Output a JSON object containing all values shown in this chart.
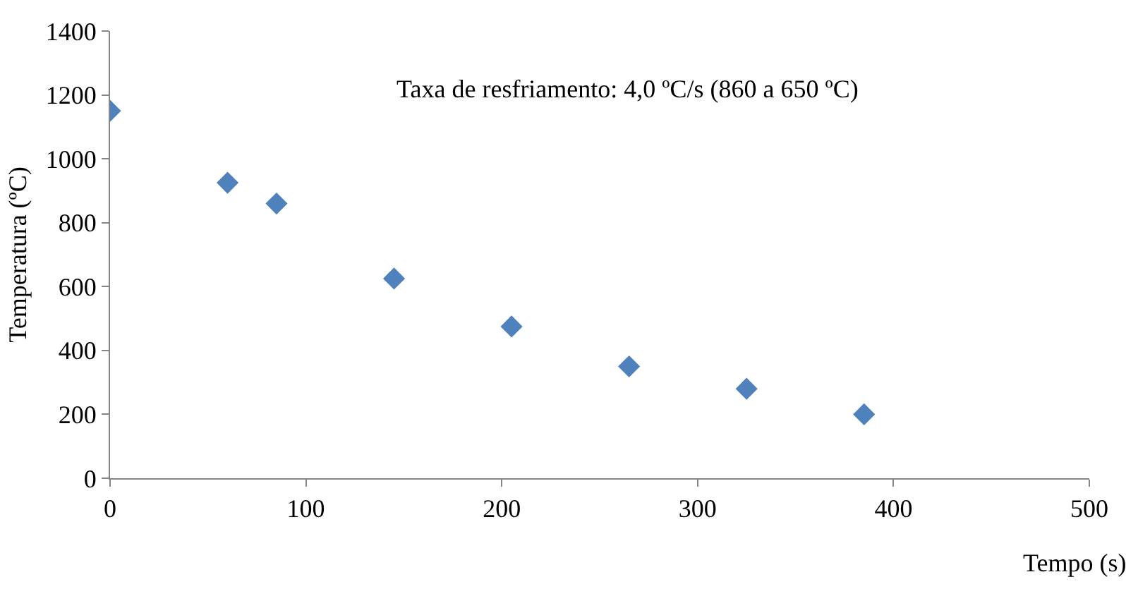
{
  "chart_data": {
    "type": "scatter",
    "xlabel": "Tempo (s)",
    "ylabel": "Temperatura (ºC)",
    "annotations": [
      "Taxa de resfriamento: 4,0 ºC/s (860 a 650 ºC)"
    ],
    "x": [
      0,
      60,
      85,
      145,
      205,
      265,
      325,
      385
    ],
    "series": [
      {
        "color": "#4f81bd",
        "values": [
          1150,
          925,
          860,
          625,
          475,
          350,
          280,
          200
        ]
      }
    ],
    "xlim": [
      0,
      500
    ],
    "xticks": [
      0,
      100,
      200,
      300,
      400,
      500
    ],
    "ylim": [
      0,
      1400
    ],
    "yticks": [
      0,
      200,
      400,
      600,
      800,
      1000,
      1200,
      1400
    ],
    "marker": "diamond"
  }
}
